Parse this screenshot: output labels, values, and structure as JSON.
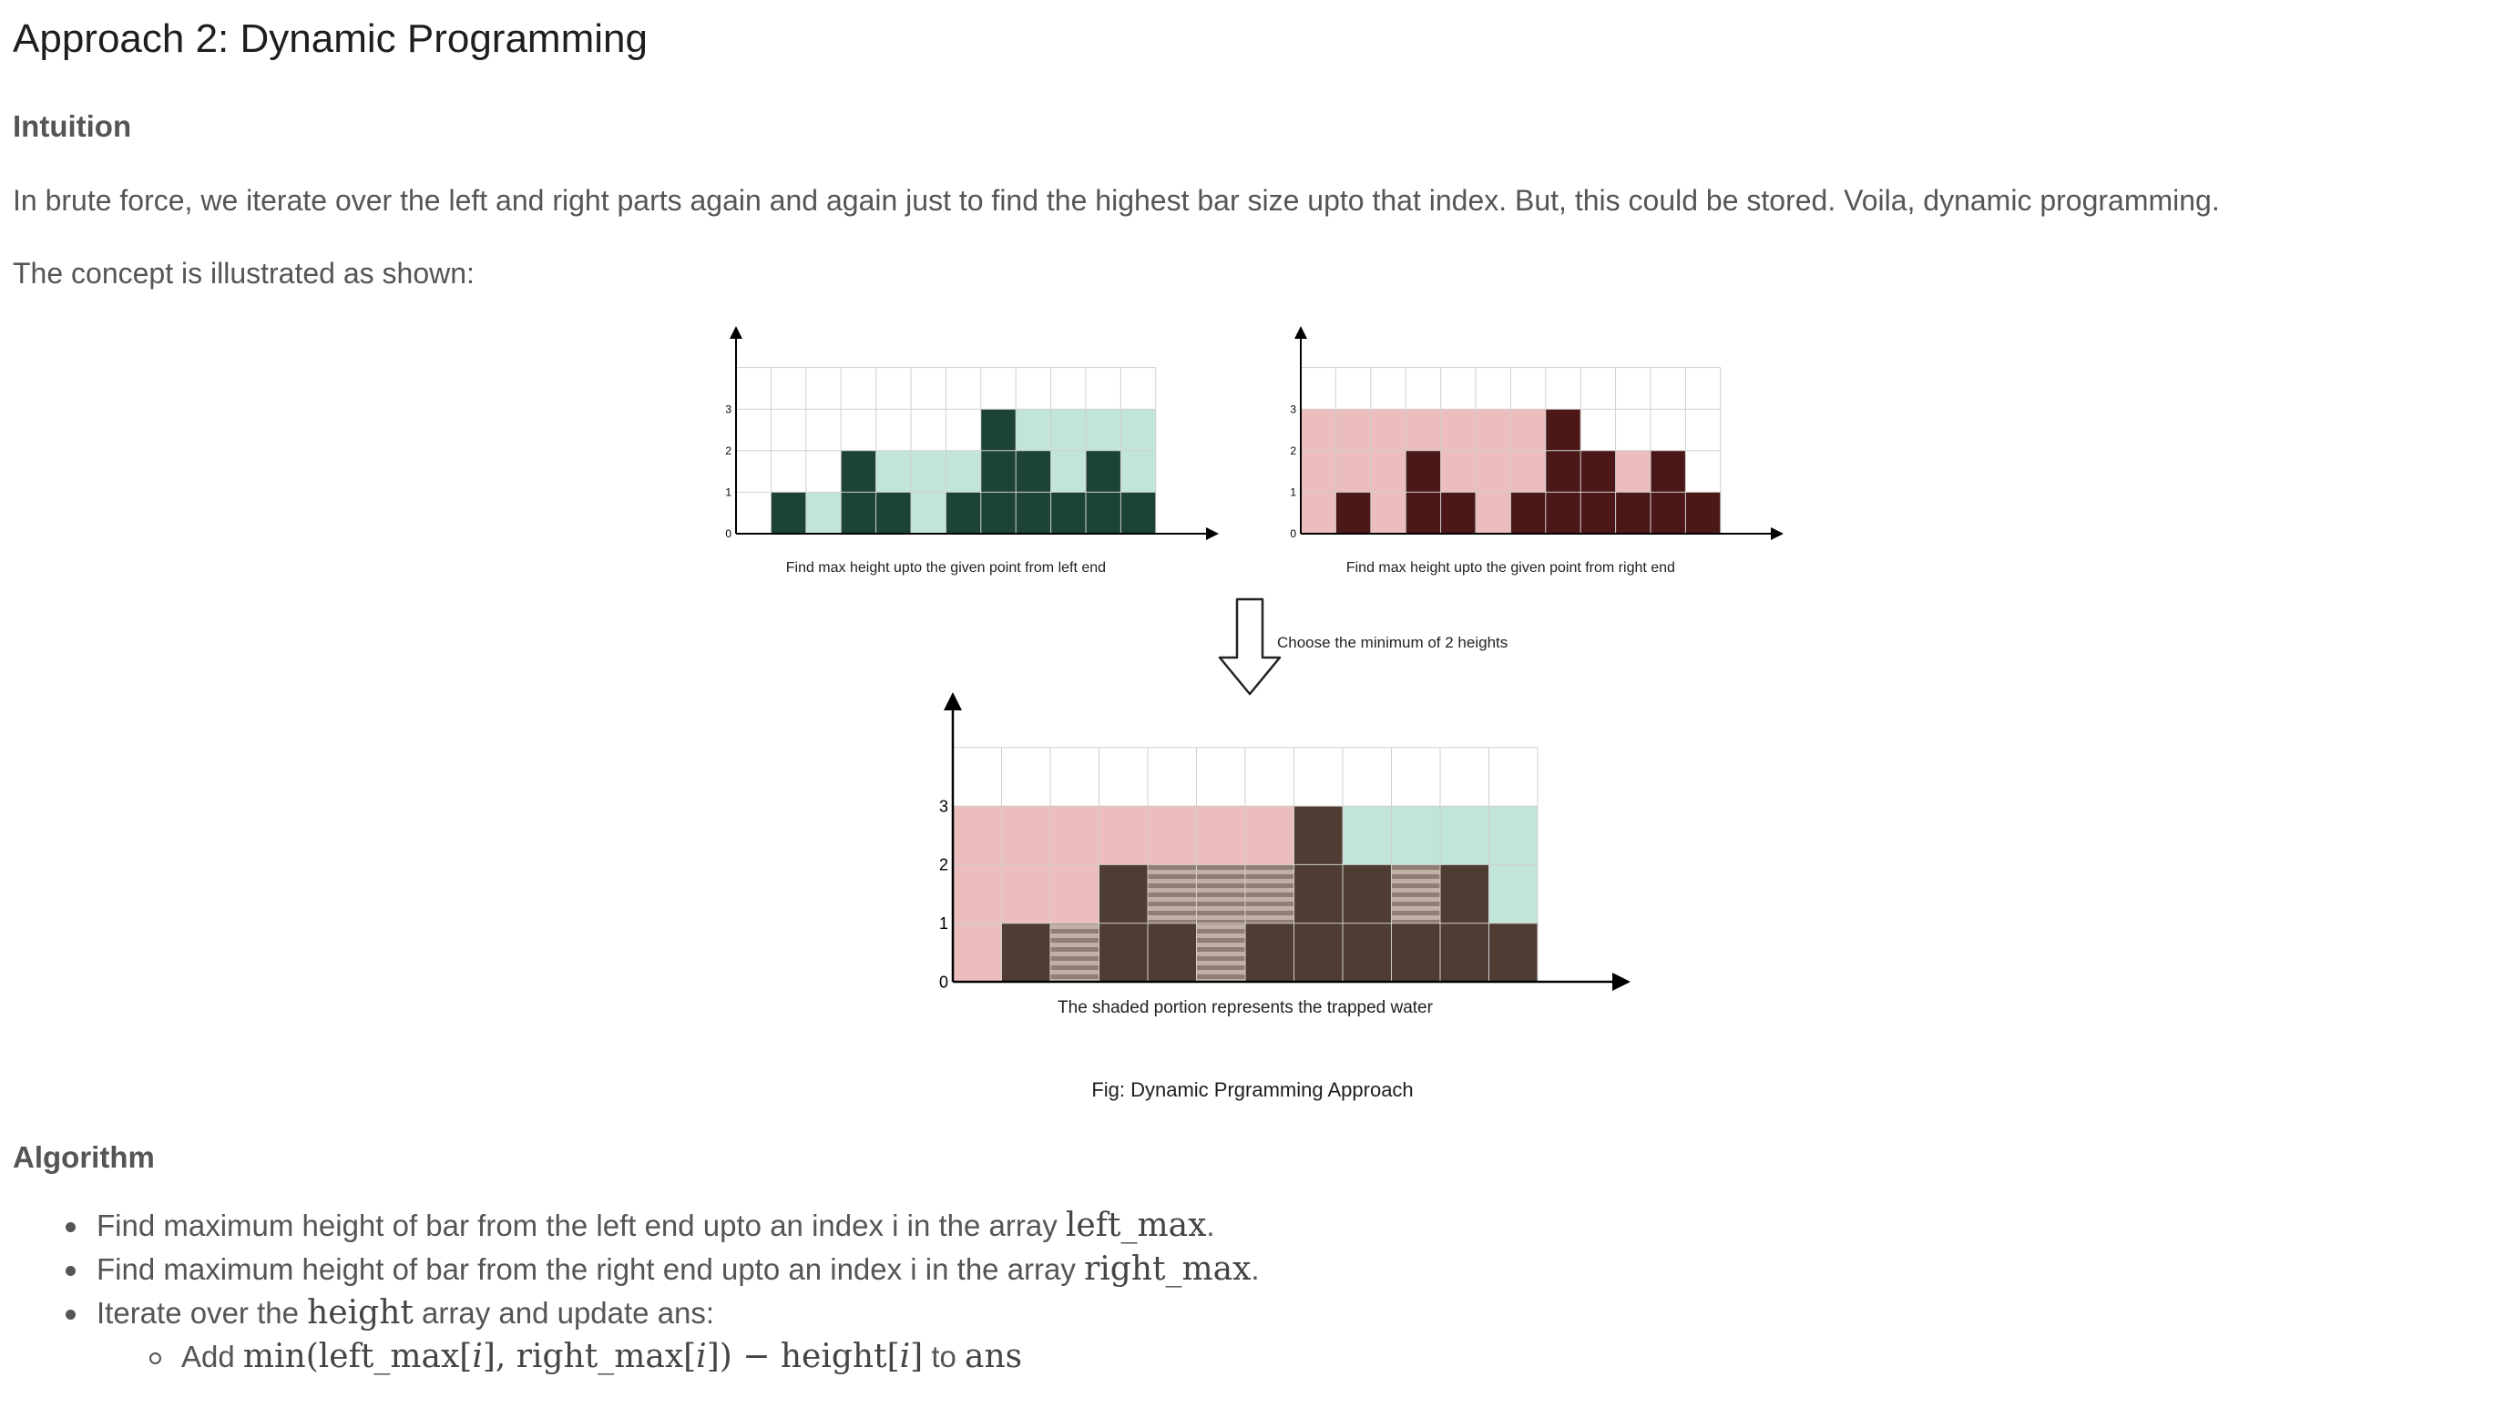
{
  "section_title": "Approach 2: Dynamic Programming",
  "intuition": {
    "heading": "Intuition",
    "text": "In brute force, we iterate over the left and right parts again and again just to find the highest bar size upto that index. But, this could be stored. Voila, dynamic programming.",
    "illustrated": "The concept is illustrated as shown:"
  },
  "figure": {
    "caption": "Fig: Dynamic Prgramming Approach",
    "arrow_label": "Choose the minimum of 2 heights",
    "colors": {
      "left_bar": "#1c4335",
      "left_fill": "#c2e5da",
      "right_bar": "#4b1817",
      "right_fill": "#ebbdbd",
      "result_bar": "#4f3c33",
      "water_stripe_light": "#c2b0a6",
      "water_stripe_dark": "#907d74",
      "grid": "#d0d0d0"
    }
  },
  "chart_data": [
    {
      "type": "bar",
      "title": "",
      "caption": "Find max height upto the given point from left end",
      "x": [
        0,
        1,
        2,
        3,
        4,
        5,
        6,
        7,
        8,
        9,
        10,
        11
      ],
      "ylim": [
        0,
        4
      ],
      "yticks": [
        0,
        1,
        2,
        3
      ],
      "series": [
        {
          "role": "height",
          "values": [
            0,
            1,
            0,
            2,
            1,
            0,
            1,
            3,
            2,
            1,
            2,
            1
          ]
        },
        {
          "role": "left_max",
          "values": [
            0,
            1,
            1,
            2,
            2,
            2,
            2,
            3,
            3,
            3,
            3,
            3
          ]
        }
      ]
    },
    {
      "type": "bar",
      "title": "",
      "caption": "Find max height upto the given point from right end",
      "x": [
        0,
        1,
        2,
        3,
        4,
        5,
        6,
        7,
        8,
        9,
        10,
        11
      ],
      "ylim": [
        0,
        4
      ],
      "yticks": [
        0,
        1,
        2,
        3
      ],
      "series": [
        {
          "role": "height",
          "values": [
            0,
            1,
            0,
            2,
            1,
            0,
            1,
            3,
            2,
            1,
            2,
            1
          ]
        },
        {
          "role": "right_max",
          "values": [
            3,
            3,
            3,
            3,
            3,
            3,
            3,
            3,
            2,
            2,
            2,
            1
          ]
        }
      ]
    },
    {
      "type": "bar",
      "title": "",
      "caption": "The shaded portion represents the trapped water",
      "x": [
        0,
        1,
        2,
        3,
        4,
        5,
        6,
        7,
        8,
        9,
        10,
        11
      ],
      "ylim": [
        0,
        4
      ],
      "yticks": [
        0,
        1,
        2,
        3
      ],
      "series": [
        {
          "role": "height",
          "values": [
            0,
            1,
            0,
            2,
            1,
            0,
            1,
            3,
            2,
            1,
            2,
            1
          ]
        },
        {
          "role": "right_max",
          "values": [
            3,
            3,
            3,
            3,
            3,
            3,
            3,
            3,
            2,
            2,
            2,
            1
          ]
        },
        {
          "role": "left_max",
          "values": [
            0,
            1,
            1,
            2,
            2,
            2,
            2,
            3,
            3,
            3,
            3,
            3
          ]
        },
        {
          "role": "water",
          "values": [
            0,
            0,
            1,
            0,
            1,
            2,
            1,
            0,
            0,
            1,
            0,
            0
          ]
        }
      ]
    }
  ],
  "algorithm": {
    "heading": "Algorithm",
    "items": [
      {
        "text": "Find maximum height of bar from the left end upto an index i in the array ",
        "math": "left_max",
        "end": "."
      },
      {
        "text": "Find maximum height of bar from the right end upto an index i in the array ",
        "math": "right_max",
        "end": "."
      },
      {
        "text": "Iterate over the ",
        "math": "height",
        "end": " array and update ans:"
      }
    ],
    "sub": {
      "prefix": "Add ",
      "fn": "min",
      "arg1": "left_max",
      "arg2": "right_max",
      "idx": "i",
      "minus": "−",
      "height": "height",
      "suffix": " to ",
      "target": "ans"
    }
  }
}
